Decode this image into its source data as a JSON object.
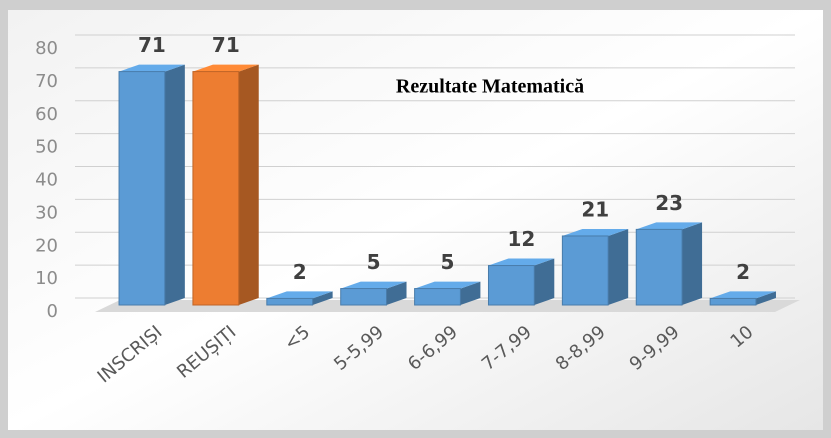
{
  "chart_data": {
    "type": "bar3d",
    "title": "Rezultate Matematică",
    "categories": [
      "INSCRIȘI",
      "REUȘIȚI",
      "<5",
      "5-5,99",
      "6-6,99",
      "7-7,99",
      "8-8,99",
      "9-9,99",
      "10"
    ],
    "values": [
      71,
      71,
      2,
      5,
      5,
      12,
      21,
      23,
      2
    ],
    "colors": [
      "#5b9bd5",
      "#ed7d31",
      "#5b9bd5",
      "#5b9bd5",
      "#5b9bd5",
      "#5b9bd5",
      "#5b9bd5",
      "#5b9bd5",
      "#5b9bd5"
    ],
    "ylim": [
      0,
      80
    ],
    "yticks": [
      0,
      10,
      20,
      30,
      40,
      50,
      60,
      70,
      80
    ],
    "grid": true
  }
}
